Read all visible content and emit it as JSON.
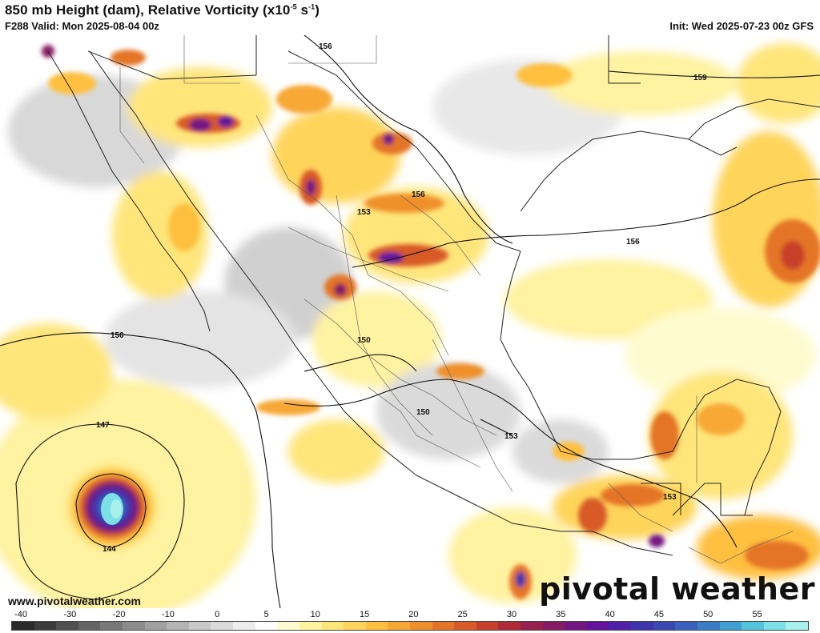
{
  "header": {
    "title_main": "850 mb Height (dam), Relative Vorticity (x10",
    "title_exp": "-5",
    "title_unit": " s",
    "title_exp2": "-1",
    "title_close": ")",
    "valid": "F288 Valid: Mon 2025-08-04 00z",
    "init": "Init: Wed 2025-07-23 00z GFS"
  },
  "contours": {
    "labels": [
      "156",
      "159",
      "156",
      "153",
      "156",
      "150",
      "150",
      "150",
      "147",
      "144",
      "153",
      "153"
    ]
  },
  "watermark": {
    "url": "www.pivotalweather.com",
    "brand": "pivotal weather"
  },
  "colorbar": {
    "tick_labels": [
      "-40",
      "-30",
      "-20",
      "-10",
      "0",
      "5",
      "10",
      "15",
      "20",
      "25",
      "30",
      "35",
      "40",
      "45",
      "50",
      "55"
    ],
    "colors": [
      "#2a2a2a",
      "#3c3c3c",
      "#505050",
      "#646464",
      "#787878",
      "#8c8c8c",
      "#a0a0a0",
      "#b4b4b4",
      "#c8c8c8",
      "#dadada",
      "#ececec",
      "#ffffff",
      "#fffbd0",
      "#fff2a0",
      "#ffe57a",
      "#ffd45a",
      "#ffc040",
      "#f7a834",
      "#ef902c",
      "#e47428",
      "#d85a28",
      "#c8402c",
      "#b02a38",
      "#98204c",
      "#861a64",
      "#741682",
      "#62129c",
      "#5020a8",
      "#4034ac",
      "#3a4ab2",
      "#3a62bc",
      "#3a7cc6",
      "#40a0d2",
      "#54c4dc",
      "#7ce0e6",
      "#a8f0ee"
    ]
  }
}
